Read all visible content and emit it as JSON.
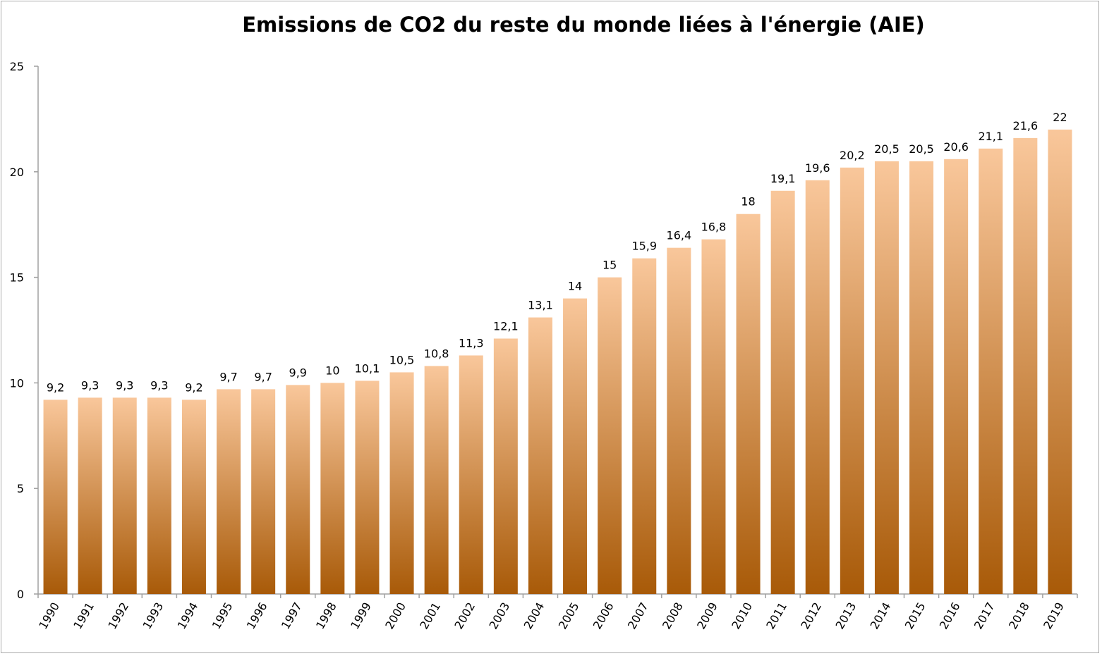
{
  "chart_data": {
    "type": "bar",
    "title": "Emissions de CO2 du reste du monde liées à l'énergie (AIE)",
    "xlabel": "",
    "ylabel": "",
    "categories": [
      "1990",
      "1991",
      "1992",
      "1993",
      "1994",
      "1995",
      "1996",
      "1997",
      "1998",
      "1999",
      "2000",
      "2001",
      "2002",
      "2003",
      "2004",
      "2005",
      "2006",
      "2007",
      "2008",
      "2009",
      "2010",
      "2011",
      "2012",
      "2013",
      "2014",
      "2015",
      "2016",
      "2017",
      "2018",
      "2019"
    ],
    "values": [
      9.2,
      9.3,
      9.3,
      9.3,
      9.2,
      9.7,
      9.7,
      9.9,
      10,
      10.1,
      10.5,
      10.8,
      11.3,
      12.1,
      13.1,
      14,
      15,
      15.9,
      16.4,
      16.8,
      18,
      19.1,
      19.6,
      20.2,
      20.5,
      20.5,
      20.6,
      21.1,
      21.6,
      22
    ],
    "data_labels": [
      "9,2",
      "9,3",
      "9,3",
      "9,3",
      "9,2",
      "9,7",
      "9,7",
      "9,9",
      "10",
      "10,1",
      "10,5",
      "10,8",
      "11,3",
      "12,1",
      "13,1",
      "14",
      "15",
      "15,9",
      "16,4",
      "16,8",
      "18",
      "19,1",
      "19,6",
      "20,2",
      "20,5",
      "20,5",
      "20,6",
      "21,1",
      "21,6",
      "22"
    ],
    "ylim": [
      0,
      25
    ],
    "yticks": [
      "0",
      "5",
      "10",
      "15",
      "20",
      "25"
    ],
    "grid": false,
    "legend": "none",
    "colors": {
      "bar_top": "#f9c79b",
      "bar_bottom": "#a85a08",
      "axis": "#a0a0a0"
    }
  }
}
